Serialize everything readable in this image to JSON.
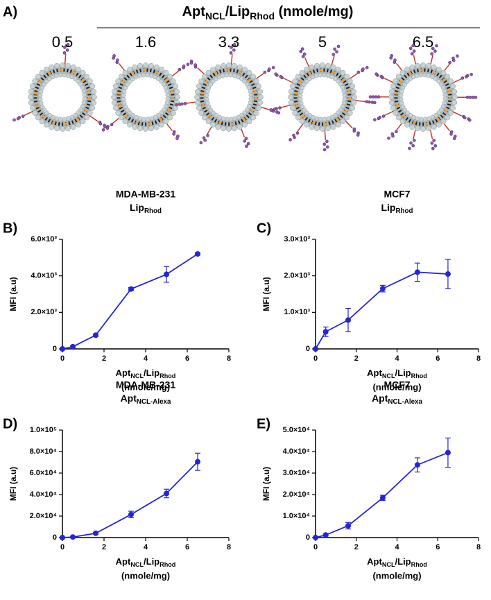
{
  "panel_a": {
    "label": "A)",
    "title": [
      "Apt",
      "NCL",
      "/Lip",
      "Rhod",
      "  (nmole/mg)"
    ],
    "values": [
      0.5,
      1.6,
      3.3,
      5,
      6.5
    ]
  },
  "chart_data": [
    {
      "type": "line",
      "panel": "B)",
      "title": "MDA-MB-231",
      "subtitle": [
        "Lip",
        "Rhod"
      ],
      "ylabel": "MFI (a.u)",
      "xlabel": [
        "Apt",
        "NCL",
        "/Lip",
        "Rhod"
      ],
      "xlabel2": "(nmole/mg)",
      "x": [
        0,
        0.5,
        1.6,
        3.3,
        5,
        6.5
      ],
      "xlim": [
        0,
        8
      ],
      "xticks": [
        0,
        2,
        4,
        6,
        8
      ],
      "ylim": [
        0,
        6000
      ],
      "yticks": [
        0,
        {
          "value": 2000,
          "label": "2.0×10³"
        },
        {
          "value": 4000,
          "label": "4.0×10³"
        },
        {
          "value": 6000,
          "label": "6.0×10³"
        }
      ],
      "series": [
        {
          "color": "#2424d8",
          "values": [
            0,
            120,
            750,
            3280,
            4080,
            5200
          ],
          "errors": [
            0,
            40,
            60,
            80,
            430,
            60
          ]
        }
      ]
    },
    {
      "type": "line",
      "panel": "C)",
      "title": "MCF7",
      "subtitle": [
        "Lip",
        "Rhod"
      ],
      "ylabel": "MFI (a.u)",
      "xlabel": [
        "Apt",
        "NCL",
        "/Lip",
        "Rhod"
      ],
      "xlabel2": "(nmole/mg)",
      "x": [
        0,
        0.5,
        1.6,
        3.3,
        5,
        6.5
      ],
      "xlim": [
        0,
        8
      ],
      "xticks": [
        0,
        2,
        4,
        6,
        8
      ],
      "ylim": [
        0,
        3000
      ],
      "yticks": [
        0,
        {
          "value": 1000,
          "label": "1.0×10³"
        },
        {
          "value": 2000,
          "label": "2.0×10³"
        },
        {
          "value": 3000,
          "label": "3.0×10³"
        }
      ],
      "series": [
        {
          "color": "#2424d8",
          "values": [
            0,
            470,
            790,
            1650,
            2100,
            2050
          ],
          "errors": [
            0,
            130,
            320,
            90,
            250,
            400
          ]
        }
      ]
    },
    {
      "type": "line",
      "panel": "D)",
      "title": "MDA-MB-231",
      "subtitle": [
        "Apt",
        "NCL-Alexa"
      ],
      "ylabel": "MFI (a.u)",
      "xlabel": [
        "Apt",
        "NCL",
        "/Lip",
        "Rhod"
      ],
      "xlabel2": "(nmole/mg)",
      "x": [
        0,
        0.5,
        1.6,
        3.3,
        5,
        6.5
      ],
      "xlim": [
        0,
        8
      ],
      "xticks": [
        0,
        2,
        4,
        6,
        8
      ],
      "ylim": [
        0,
        100000
      ],
      "yticks": [
        0,
        {
          "value": 20000,
          "label": "2.0×10⁴"
        },
        {
          "value": 40000,
          "label": "4.0×10⁴"
        },
        {
          "value": 60000,
          "label": "6.0×10⁴"
        },
        {
          "value": 80000,
          "label": "8.0×10⁴"
        },
        {
          "value": 100000,
          "label": "1.0×10⁵"
        }
      ],
      "series": [
        {
          "color": "#2424d8",
          "values": [
            0,
            500,
            4000,
            21500,
            41000,
            70500
          ],
          "errors": [
            0,
            300,
            800,
            3000,
            4000,
            8000
          ]
        }
      ]
    },
    {
      "type": "line",
      "panel": "E)",
      "title": "MCF7",
      "subtitle": [
        "Apt",
        "NCL-Alexa"
      ],
      "ylabel": "MFI (a.u)",
      "xlabel": [
        "Apt",
        "NCL",
        "/Lip",
        "Rhod"
      ],
      "xlabel2": "(nmole/mg)",
      "x": [
        0,
        0.5,
        1.6,
        3.3,
        5,
        6.5
      ],
      "xlim": [
        0,
        8
      ],
      "xticks": [
        0,
        2,
        4,
        6,
        8
      ],
      "ylim": [
        0,
        50000
      ],
      "yticks": [
        0,
        {
          "value": 10000,
          "label": "1.0×10⁴"
        },
        {
          "value": 20000,
          "label": "2.0×10⁴"
        },
        {
          "value": 30000,
          "label": "3.0×10⁴"
        },
        {
          "value": 40000,
          "label": "4.0×10⁴"
        },
        {
          "value": 50000,
          "label": "5.0×10⁴"
        }
      ],
      "series": [
        {
          "color": "#2424d8",
          "values": [
            0,
            1200,
            5500,
            18500,
            33800,
            39500
          ],
          "errors": [
            0,
            500,
            1500,
            1200,
            3300,
            6800
          ]
        }
      ]
    }
  ]
}
